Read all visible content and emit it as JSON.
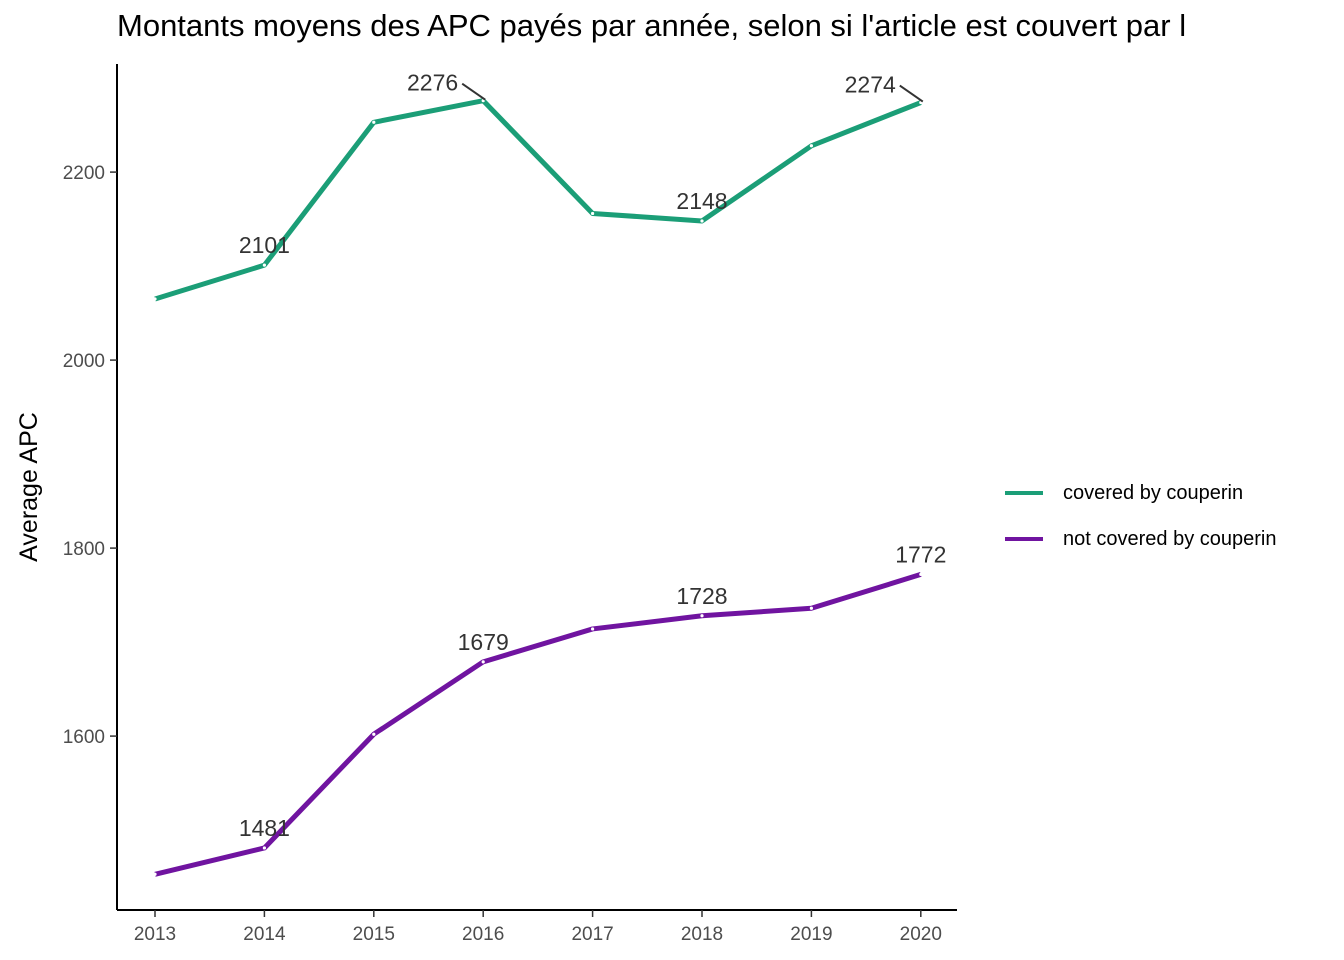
{
  "chart_data": {
    "type": "line",
    "title": "Montants moyens des APC payés par année, selon si l'article est couvert par l",
    "xlabel": "",
    "ylabel": "Average APC",
    "x": [
      "2013",
      "2014",
      "2015",
      "2016",
      "2017",
      "2018",
      "2019",
      "2020"
    ],
    "ylim": [
      1415,
      2315
    ],
    "yticks": [
      1600,
      1800,
      2000,
      2200
    ],
    "grid": false,
    "legend_position": "right",
    "series": [
      {
        "name": "covered by couperin",
        "color": "#1b9e77",
        "values": [
          2065,
          2101,
          2253,
          2276,
          2156,
          2148,
          2228,
          2274
        ],
        "labels": [
          "",
          "2101",
          "",
          "2276",
          "",
          "2148",
          "",
          "2274"
        ]
      },
      {
        "name": "not covered by couperin",
        "color": "#7014a0",
        "values": [
          1453,
          1481,
          1602,
          1679,
          1714,
          1728,
          1736,
          1772
        ],
        "labels": [
          "",
          "1481",
          "",
          "1679",
          "",
          "1728",
          "",
          "1772"
        ]
      }
    ]
  }
}
